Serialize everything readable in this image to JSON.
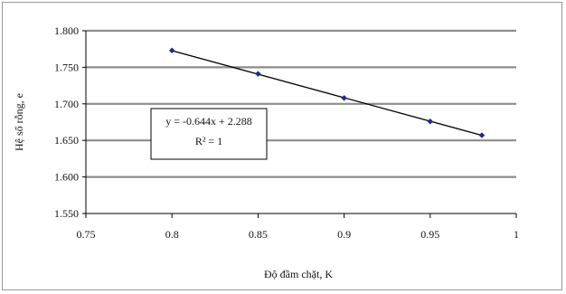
{
  "chart_data": {
    "type": "scatter",
    "title": "",
    "xlabel": "Độ đầm chặt, K",
    "ylabel": "Hệ số rỗng, e",
    "xlim": [
      0.75,
      1
    ],
    "ylim": [
      1.55,
      1.8
    ],
    "x_ticks": [
      0.75,
      0.8,
      0.85,
      0.9,
      0.95,
      1
    ],
    "x_tick_labels": [
      "0.75",
      "0.8",
      "0.85",
      "0.9",
      "0.95",
      "1"
    ],
    "y_ticks": [
      1.55,
      1.6,
      1.65,
      1.7,
      1.75,
      1.8
    ],
    "y_tick_labels": [
      "1.550",
      "1.600",
      "1.650",
      "1.700",
      "1.750",
      "1.800"
    ],
    "grid": "horizontal",
    "legend": "none",
    "series": [
      {
        "x": [
          0.8,
          0.85,
          0.9,
          0.95,
          0.98
        ],
        "y": [
          1.773,
          1.741,
          1.708,
          1.676,
          1.657
        ],
        "marker_color": "#1f2a8a"
      }
    ],
    "trendline": {
      "slope": -0.644,
      "intercept": 2.288,
      "x_range": [
        0.8,
        0.98
      ],
      "equation_label": "y = -0.644x + 2.288",
      "r2_label": "R² = 1",
      "color": "#000000"
    },
    "colors": {
      "grid": "#8c8c8c",
      "axis": "#000000"
    }
  }
}
